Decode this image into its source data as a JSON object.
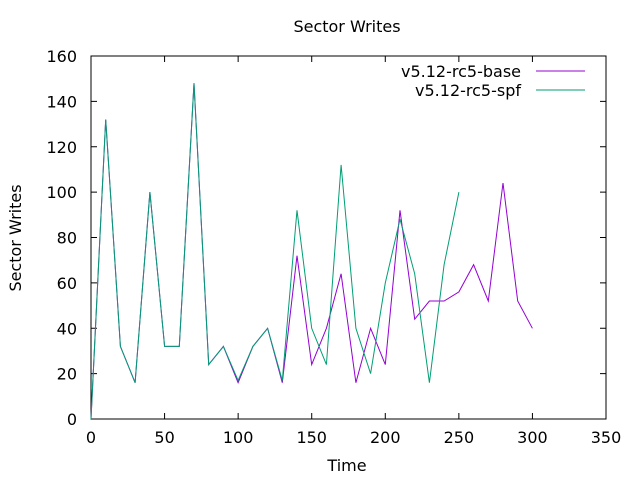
{
  "chart_data": {
    "type": "line",
    "title": "Sector Writes",
    "xlabel": "Time",
    "ylabel": "Sector Writes",
    "xlim": [
      0,
      350
    ],
    "ylim": [
      0,
      160
    ],
    "xticks": [
      0,
      50,
      100,
      150,
      200,
      250,
      300,
      350
    ],
    "yticks": [
      0,
      20,
      40,
      60,
      80,
      100,
      120,
      140,
      160
    ],
    "grid": false,
    "legend_position": "top-right",
    "series": [
      {
        "name": "v5.12-rc5-base",
        "color": "#9400d3",
        "x": [
          0,
          10,
          20,
          30,
          40,
          50,
          60,
          70,
          80,
          90,
          100,
          110,
          120,
          130,
          140,
          150,
          160,
          170,
          180,
          190,
          200,
          210,
          220,
          230,
          240,
          250,
          260,
          270,
          280,
          290,
          300
        ],
        "y": [
          0,
          132,
          32,
          16,
          100,
          32,
          32,
          148,
          24,
          32,
          16,
          32,
          40,
          16,
          72,
          24,
          40,
          64,
          16,
          40,
          24,
          92,
          44,
          52,
          52,
          56,
          68,
          52,
          104,
          52,
          40
        ]
      },
      {
        "name": "v5.12-rc5-spf",
        "color": "#009e73",
        "x": [
          0,
          10,
          20,
          30,
          40,
          50,
          60,
          70,
          80,
          90,
          100,
          110,
          120,
          130,
          140,
          150,
          160,
          170,
          180,
          190,
          200,
          210,
          220,
          230,
          240,
          250
        ],
        "y": [
          0,
          132,
          32,
          16,
          100,
          32,
          32,
          148,
          24,
          32,
          17,
          32,
          40,
          17,
          92,
          40,
          24,
          112,
          40,
          20,
          60,
          88,
          64,
          16,
          68,
          100
        ]
      }
    ]
  }
}
